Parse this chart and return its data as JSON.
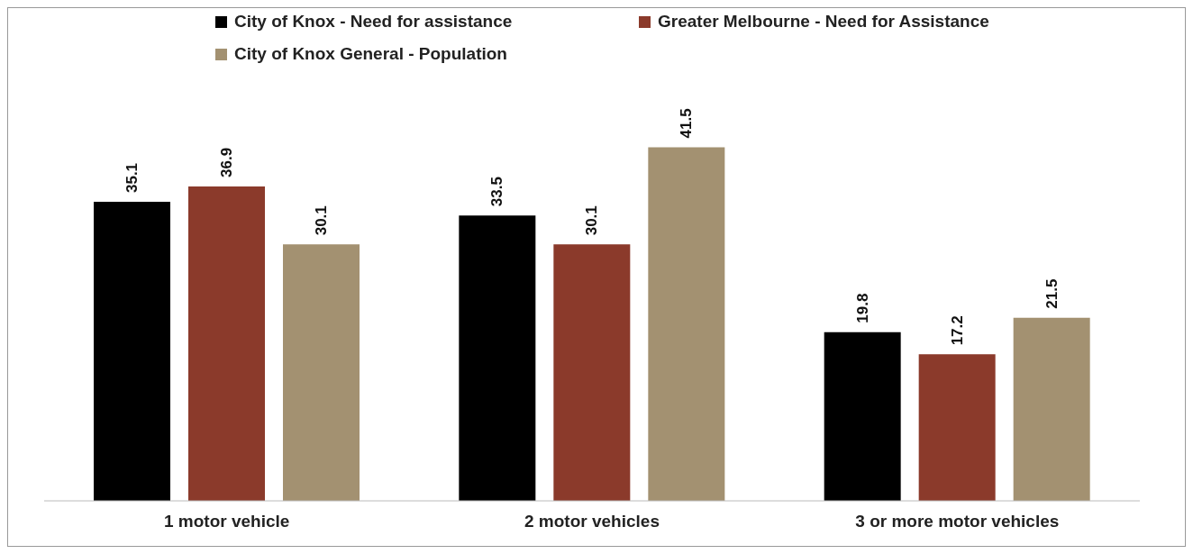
{
  "chart_data": {
    "type": "bar",
    "categories": [
      "1 motor vehicle",
      "2 motor vehicles",
      "3 or more motor vehicles"
    ],
    "series": [
      {
        "name": "City of Knox - Need for assistance",
        "color": "#000000",
        "values": [
          35.1,
          33.5,
          19.8
        ]
      },
      {
        "name": "Greater Melbourne - Need for Assistance",
        "color": "#8b3a2b",
        "values": [
          36.9,
          30.1,
          17.2
        ]
      },
      {
        "name": "City of Knox General - Population",
        "color": "#a39171",
        "values": [
          30.1,
          41.5,
          21.5
        ]
      }
    ],
    "data_labels": true,
    "legend": "top",
    "grid": false
  }
}
